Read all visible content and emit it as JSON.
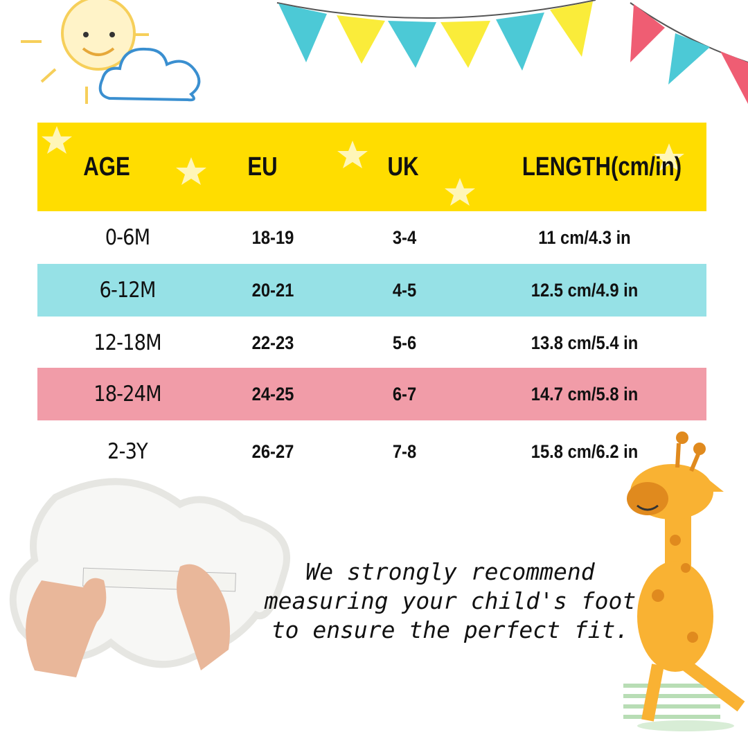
{
  "table": {
    "headers": [
      "AGE",
      "EU",
      "UK",
      "LENGTH(cm/in)"
    ],
    "rows": [
      {
        "age": "0-6M",
        "eu": "18-19",
        "uk": "3-4",
        "length": "11 cm/4.3 in",
        "color": "#FFFFFF"
      },
      {
        "age": "6-12M",
        "eu": "20-21",
        "uk": "4-5",
        "length": "12.5 cm/4.9 in",
        "color": "#96E1E6"
      },
      {
        "age": "12-18M",
        "eu": "22-23",
        "uk": "5-6",
        "length": "13.8 cm/5.4 in",
        "color": "#FFFFFF"
      },
      {
        "age": "18-24M",
        "eu": "24-25",
        "uk": "6-7",
        "length": "14.7 cm/5.8 in",
        "color": "#F19CA8"
      },
      {
        "age": "2-3Y",
        "eu": "26-27",
        "uk": "7-8",
        "length": "15.8 cm/6.2 in",
        "color": "#FFFFFF"
      }
    ],
    "header_color": "#FFDD00"
  },
  "note": {
    "lines": [
      "We strongly recommend",
      "measuring your child's foot",
      "to ensure the perfect fit."
    ]
  },
  "decorations": [
    "sun-icon",
    "cloud-icon",
    "bunting-flags",
    "hands-measuring-foot-photo",
    "giraffe-illustration",
    "stars"
  ]
}
